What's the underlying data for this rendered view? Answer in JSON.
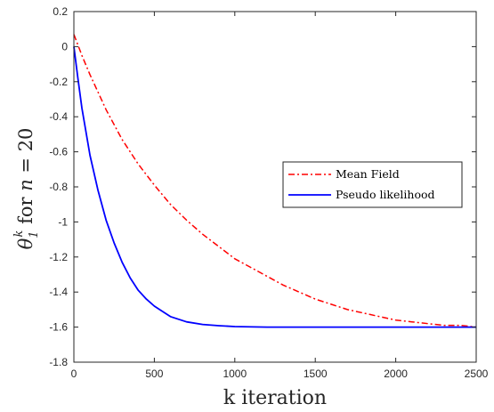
{
  "chart_data": {
    "type": "line",
    "xlabel": "k iteration",
    "ylabel": "θ1^k for n = 20",
    "ylabel_parts": {
      "base": "θ",
      "sub": "1",
      "sup": "k",
      "rest": " for ",
      "var": "n",
      "eq": " = 20"
    },
    "xlim": [
      0,
      2500
    ],
    "ylim": [
      -1.8,
      0.2
    ],
    "xticks": [
      0,
      500,
      1000,
      1500,
      2000,
      2500
    ],
    "yticks": [
      0.2,
      0,
      -0.2,
      -0.4,
      -0.6,
      -0.8,
      -1,
      -1.2,
      -1.4,
      -1.6,
      -1.8
    ],
    "legend_position": "right",
    "grid": false,
    "series": [
      {
        "name": "Mean Field",
        "color": "#ff0000",
        "style": "dash-dot",
        "points": [
          [
            0,
            0.07
          ],
          [
            50,
            -0.05
          ],
          [
            100,
            -0.16
          ],
          [
            200,
            -0.36
          ],
          [
            300,
            -0.53
          ],
          [
            400,
            -0.67
          ],
          [
            500,
            -0.79
          ],
          [
            600,
            -0.9
          ],
          [
            700,
            -0.99
          ],
          [
            800,
            -1.07
          ],
          [
            900,
            -1.14
          ],
          [
            1000,
            -1.21
          ],
          [
            1100,
            -1.26
          ],
          [
            1200,
            -1.31
          ],
          [
            1300,
            -1.36
          ],
          [
            1400,
            -1.4
          ],
          [
            1500,
            -1.44
          ],
          [
            1600,
            -1.47
          ],
          [
            1700,
            -1.5
          ],
          [
            1800,
            -1.52
          ],
          [
            1900,
            -1.54
          ],
          [
            2000,
            -1.56
          ],
          [
            2100,
            -1.57
          ],
          [
            2200,
            -1.58
          ],
          [
            2300,
            -1.59
          ],
          [
            2400,
            -1.59
          ],
          [
            2500,
            -1.6
          ]
        ]
      },
      {
        "name": "Pseudo likelihood",
        "color": "#0000ff",
        "style": "solid",
        "points": [
          [
            0,
            0.0
          ],
          [
            25,
            -0.18
          ],
          [
            50,
            -0.35
          ],
          [
            100,
            -0.62
          ],
          [
            150,
            -0.82
          ],
          [
            200,
            -0.99
          ],
          [
            250,
            -1.12
          ],
          [
            300,
            -1.23
          ],
          [
            350,
            -1.32
          ],
          [
            400,
            -1.39
          ],
          [
            450,
            -1.44
          ],
          [
            500,
            -1.48
          ],
          [
            550,
            -1.51
          ],
          [
            600,
            -1.54
          ],
          [
            700,
            -1.57
          ],
          [
            800,
            -1.585
          ],
          [
            900,
            -1.592
          ],
          [
            1000,
            -1.597
          ],
          [
            1200,
            -1.6
          ],
          [
            1500,
            -1.6
          ],
          [
            2000,
            -1.6
          ],
          [
            2500,
            -1.6
          ]
        ]
      }
    ]
  }
}
